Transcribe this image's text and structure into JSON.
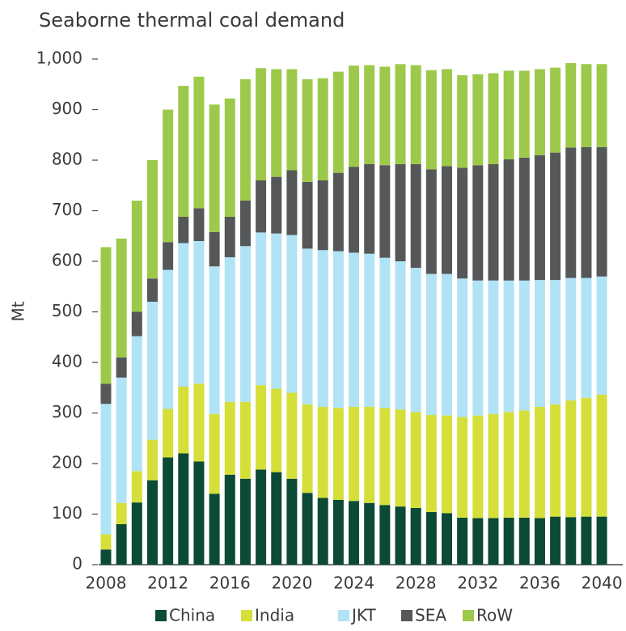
{
  "chart_data": {
    "type": "stacked_bar",
    "title": "Seaborne thermal coal demand",
    "y_label": "Mt",
    "categories": [
      "2008",
      null,
      null,
      null,
      "2012",
      null,
      null,
      null,
      "2016",
      null,
      null,
      null,
      "2020",
      null,
      null,
      null,
      "2024",
      null,
      null,
      null,
      "2028",
      null,
      null,
      null,
      "2032",
      null,
      null,
      null,
      "2036",
      null,
      null,
      null,
      "2040"
    ],
    "series": [
      {
        "name": "China",
        "color": "#0b4a35",
        "values": [
          30,
          80,
          123,
          167,
          212,
          220,
          204,
          140,
          178,
          170,
          188,
          183,
          170,
          142,
          132,
          128,
          126,
          122,
          118,
          115,
          112,
          104,
          102,
          93,
          92,
          92,
          93,
          93,
          92,
          95,
          94,
          95,
          95
        ]
      },
      {
        "name": "India",
        "color": "#d4df3a",
        "values": [
          30,
          42,
          62,
          80,
          96,
          132,
          154,
          158,
          144,
          152,
          167,
          165,
          170,
          175,
          180,
          182,
          186,
          190,
          192,
          192,
          190,
          192,
          193,
          199,
          203,
          206,
          209,
          212,
          220,
          222,
          231,
          235,
          241
        ]
      },
      {
        "name": "JKT",
        "color": "#b0e3f5",
        "values": [
          258,
          248,
          267,
          273,
          275,
          284,
          282,
          292,
          286,
          308,
          302,
          307,
          312,
          308,
          310,
          310,
          305,
          303,
          297,
          293,
          285,
          279,
          280,
          274,
          267,
          264,
          260,
          257,
          251,
          246,
          242,
          237,
          234
        ]
      },
      {
        "name": "SEA",
        "color": "#555759",
        "values": [
          40,
          40,
          48,
          46,
          55,
          52,
          65,
          68,
          80,
          90,
          103,
          112,
          128,
          132,
          138,
          155,
          170,
          177,
          183,
          192,
          205,
          207,
          213,
          219,
          228,
          230,
          240,
          243,
          247,
          252,
          258,
          259,
          256
        ]
      },
      {
        "name": "RoW",
        "color": "#9dc94a",
        "values": [
          270,
          235,
          220,
          234,
          262,
          259,
          260,
          252,
          234,
          240,
          222,
          213,
          200,
          203,
          202,
          200,
          200,
          196,
          195,
          198,
          196,
          196,
          192,
          183,
          180,
          180,
          175,
          172,
          170,
          168,
          167,
          164,
          164
        ]
      }
    ],
    "ylim": [
      0,
      1000
    ],
    "yticks": [
      0,
      100,
      200,
      300,
      400,
      500,
      600,
      700,
      800,
      900,
      {
        "value": 1000,
        "label": "1,000"
      }
    ],
    "legend": "bottom"
  }
}
